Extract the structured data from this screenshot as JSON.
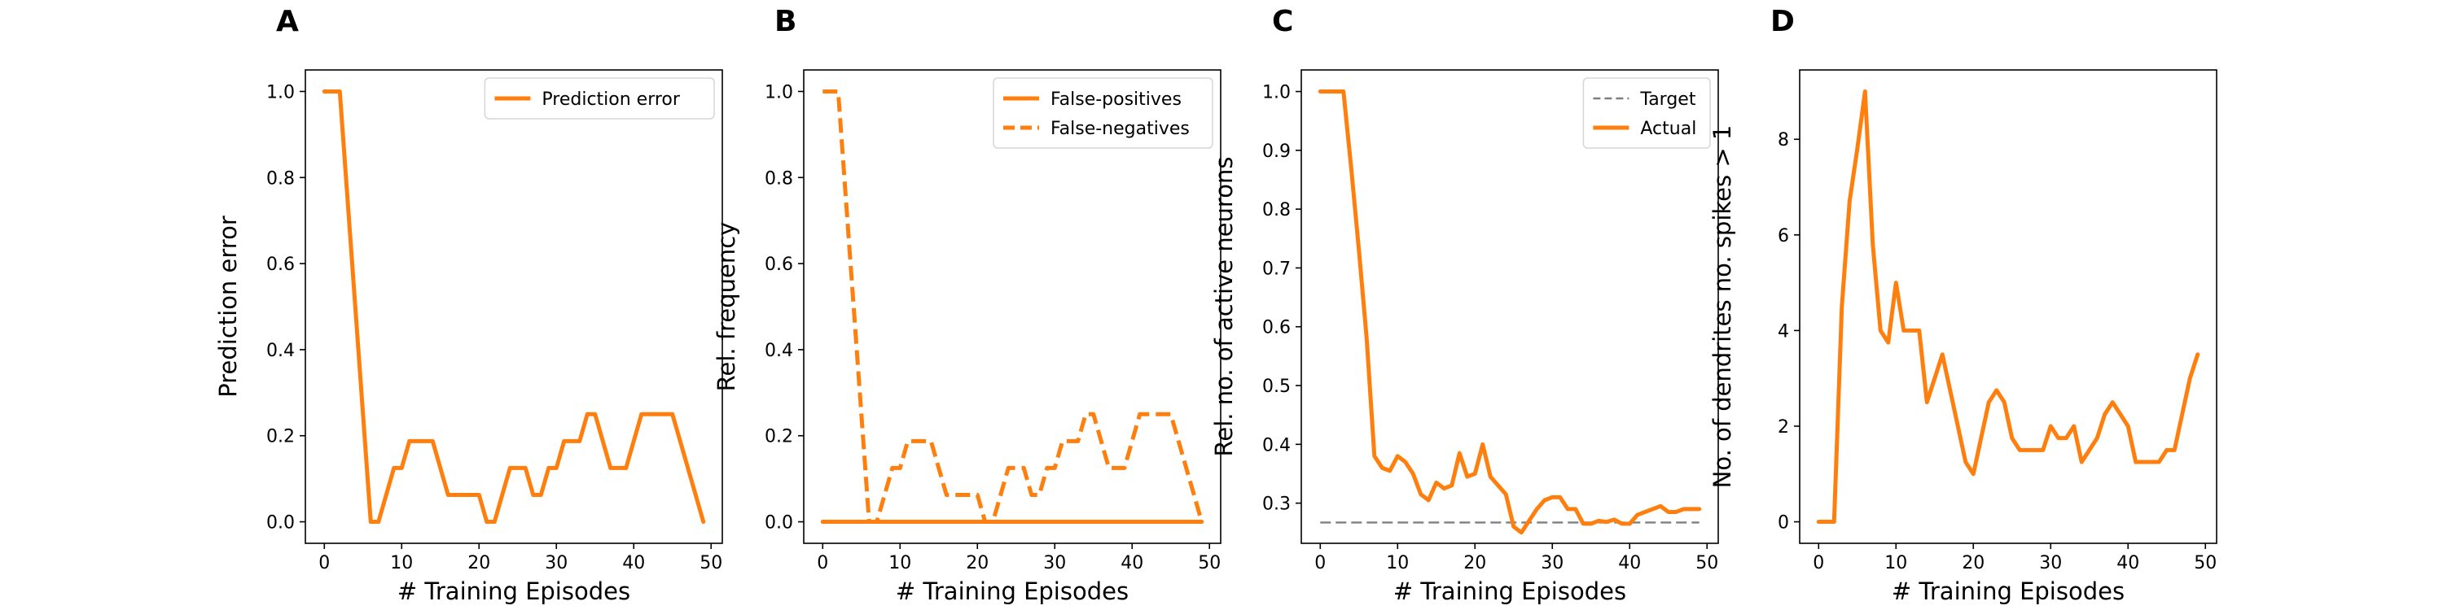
{
  "figure": {
    "line_color": "#ff7f0e",
    "target_color": "#7f7f7f"
  },
  "chart_data": [
    {
      "id": "A",
      "panel_label": "A",
      "type": "line",
      "title": "",
      "xlabel": "# Training Episodes",
      "ylabel": "Prediction error",
      "xlim": [
        -2.45,
        51.45
      ],
      "ylim": [
        -0.05,
        1.05
      ],
      "xticks": [
        0,
        10,
        20,
        30,
        40,
        50
      ],
      "yticks": [
        0.0,
        0.2,
        0.4,
        0.6,
        0.8,
        1.0
      ],
      "ytick_labels": [
        "0.0",
        "0.2",
        "0.4",
        "0.6",
        "0.8",
        "1.0"
      ],
      "grid": false,
      "legend_position": "top-right",
      "series": [
        {
          "name": "Prediction error",
          "style": "solid",
          "color": "#ff7f0e",
          "x": [
            0,
            1,
            2,
            3,
            4,
            5,
            6,
            7,
            8,
            9,
            10,
            11,
            12,
            13,
            14,
            15,
            16,
            17,
            18,
            19,
            20,
            21,
            22,
            23,
            24,
            25,
            26,
            27,
            28,
            29,
            30,
            31,
            32,
            33,
            34,
            35,
            36,
            37,
            38,
            39,
            40,
            41,
            42,
            43,
            44,
            45,
            46,
            47,
            48,
            49
          ],
          "y": [
            1.0,
            1.0,
            1.0,
            0.75,
            0.5,
            0.25,
            0.0,
            0.0,
            0.0625,
            0.125,
            0.125,
            0.1875,
            0.1875,
            0.1875,
            0.1875,
            0.125,
            0.0625,
            0.0625,
            0.0625,
            0.0625,
            0.0625,
            0.0,
            0.0,
            0.0625,
            0.125,
            0.125,
            0.125,
            0.0625,
            0.0625,
            0.125,
            0.125,
            0.1875,
            0.1875,
            0.1875,
            0.25,
            0.25,
            0.1875,
            0.125,
            0.125,
            0.125,
            0.1875,
            0.25,
            0.25,
            0.25,
            0.25,
            0.25,
            0.1875,
            0.125,
            0.0625,
            0.0
          ]
        }
      ]
    },
    {
      "id": "B",
      "panel_label": "B",
      "type": "line",
      "title": "",
      "xlabel": "# Training Episodes",
      "ylabel": "Rel. frequency",
      "xlim": [
        -2.45,
        51.45
      ],
      "ylim": [
        -0.05,
        1.05
      ],
      "xticks": [
        0,
        10,
        20,
        30,
        40,
        50
      ],
      "yticks": [
        0.0,
        0.2,
        0.4,
        0.6,
        0.8,
        1.0
      ],
      "ytick_labels": [
        "0.0",
        "0.2",
        "0.4",
        "0.6",
        "0.8",
        "1.0"
      ],
      "grid": false,
      "legend_position": "top-right",
      "series": [
        {
          "name": "False-positives",
          "style": "solid",
          "color": "#ff7f0e",
          "x": [
            0,
            1,
            2,
            3,
            4,
            5,
            6,
            7,
            8,
            9,
            10,
            11,
            12,
            13,
            14,
            15,
            16,
            17,
            18,
            19,
            20,
            21,
            22,
            23,
            24,
            25,
            26,
            27,
            28,
            29,
            30,
            31,
            32,
            33,
            34,
            35,
            36,
            37,
            38,
            39,
            40,
            41,
            42,
            43,
            44,
            45,
            46,
            47,
            48,
            49
          ],
          "y": [
            0,
            0,
            0,
            0,
            0,
            0,
            0,
            0,
            0,
            0,
            0,
            0,
            0,
            0,
            0,
            0,
            0,
            0,
            0,
            0,
            0,
            0,
            0,
            0,
            0,
            0,
            0,
            0,
            0,
            0,
            0,
            0,
            0,
            0,
            0,
            0,
            0,
            0,
            0,
            0,
            0,
            0,
            0,
            0,
            0,
            0,
            0,
            0,
            0,
            0
          ]
        },
        {
          "name": "False-negatives",
          "style": "dashed",
          "color": "#ff7f0e",
          "x": [
            0,
            1,
            2,
            3,
            4,
            5,
            6,
            7,
            8,
            9,
            10,
            11,
            12,
            13,
            14,
            15,
            16,
            17,
            18,
            19,
            20,
            21,
            22,
            23,
            24,
            25,
            26,
            27,
            28,
            29,
            30,
            31,
            32,
            33,
            34,
            35,
            36,
            37,
            38,
            39,
            40,
            41,
            42,
            43,
            44,
            45,
            46,
            47,
            48,
            49
          ],
          "y": [
            1.0,
            1.0,
            1.0,
            0.75,
            0.5,
            0.25,
            0.0,
            0.0,
            0.0625,
            0.125,
            0.125,
            0.1875,
            0.1875,
            0.1875,
            0.1875,
            0.125,
            0.0625,
            0.0625,
            0.0625,
            0.0625,
            0.0625,
            0.0,
            0.0,
            0.0625,
            0.125,
            0.125,
            0.125,
            0.0625,
            0.0625,
            0.125,
            0.125,
            0.1875,
            0.1875,
            0.1875,
            0.25,
            0.25,
            0.1875,
            0.125,
            0.125,
            0.125,
            0.1875,
            0.25,
            0.25,
            0.25,
            0.25,
            0.25,
            0.1875,
            0.125,
            0.0625,
            0.0
          ]
        }
      ]
    },
    {
      "id": "C",
      "panel_label": "C",
      "type": "line",
      "title": "",
      "xlabel": "# Training Episodes",
      "ylabel": "Rel. no. of active neurons",
      "xlim": [
        -2.45,
        51.45
      ],
      "ylim": [
        0.2317,
        1.0367
      ],
      "xticks": [
        0,
        10,
        20,
        30,
        40,
        50
      ],
      "yticks": [
        0.3,
        0.4,
        0.5,
        0.6,
        0.7,
        0.8,
        0.9,
        1.0
      ],
      "ytick_labels": [
        "0.3",
        "0.4",
        "0.5",
        "0.6",
        "0.7",
        "0.8",
        "0.9",
        "1.0"
      ],
      "grid": false,
      "legend_position": "top-right",
      "series": [
        {
          "name": "Target",
          "style": "dashed",
          "color": "#7f7f7f",
          "x": [
            0,
            49
          ],
          "y": [
            0.267,
            0.267
          ]
        },
        {
          "name": "Actual",
          "style": "solid",
          "color": "#ff7f0e",
          "x": [
            0,
            1,
            2,
            3,
            4,
            5,
            6,
            7,
            8,
            9,
            10,
            11,
            12,
            13,
            14,
            15,
            16,
            17,
            18,
            19,
            20,
            21,
            22,
            23,
            24,
            25,
            26,
            27,
            28,
            29,
            30,
            31,
            32,
            33,
            34,
            35,
            36,
            37,
            38,
            39,
            40,
            41,
            42,
            43,
            44,
            45,
            46,
            47,
            48,
            49
          ],
          "y": [
            1.0,
            1.0,
            1.0,
            1.0,
            0.87,
            0.73,
            0.58,
            0.38,
            0.36,
            0.355,
            0.38,
            0.37,
            0.35,
            0.315,
            0.305,
            0.335,
            0.325,
            0.33,
            0.385,
            0.345,
            0.35,
            0.4,
            0.345,
            0.33,
            0.315,
            0.26,
            0.25,
            0.27,
            0.29,
            0.305,
            0.31,
            0.31,
            0.29,
            0.29,
            0.265,
            0.265,
            0.27,
            0.268,
            0.272,
            0.265,
            0.265,
            0.28,
            0.285,
            0.29,
            0.295,
            0.285,
            0.285,
            0.29,
            0.29,
            0.29
          ]
        }
      ]
    },
    {
      "id": "D",
      "panel_label": "D",
      "type": "line",
      "title": "",
      "xlabel": "# Training Episodes",
      "ylabel": "No. of dendrites no. spikes > 1",
      "xlim": [
        -2.45,
        51.45
      ],
      "ylim": [
        -0.45,
        9.45
      ],
      "xticks": [
        0,
        10,
        20,
        30,
        40,
        50
      ],
      "yticks": [
        0,
        2,
        4,
        6,
        8
      ],
      "ytick_labels": [
        "0",
        "2",
        "4",
        "6",
        "8"
      ],
      "grid": false,
      "legend_position": "none",
      "series": [
        {
          "style": "solid",
          "color": "#ff7f0e",
          "x": [
            0,
            1,
            2,
            3,
            4,
            5,
            6,
            7,
            8,
            9,
            10,
            11,
            12,
            13,
            14,
            15,
            16,
            17,
            18,
            19,
            20,
            21,
            22,
            23,
            24,
            25,
            26,
            27,
            28,
            29,
            30,
            31,
            32,
            33,
            34,
            35,
            36,
            37,
            38,
            39,
            40,
            41,
            42,
            43,
            44,
            45,
            46,
            47,
            48,
            49
          ],
          "y": [
            0,
            0,
            0,
            4.5,
            6.7,
            7.8,
            9.0,
            5.8,
            4.0,
            3.75,
            5.0,
            4.0,
            4.0,
            4.0,
            2.5,
            3.0,
            3.5,
            2.75,
            2.0,
            1.25,
            1.0,
            1.75,
            2.5,
            2.75,
            2.5,
            1.75,
            1.5,
            1.5,
            1.5,
            1.5,
            2.0,
            1.75,
            1.75,
            2.0,
            1.25,
            1.5,
            1.75,
            2.25,
            2.5,
            2.25,
            2.0,
            1.25,
            1.25,
            1.25,
            1.25,
            1.5,
            1.5,
            2.25,
            3.0,
            3.5
          ]
        }
      ]
    }
  ]
}
